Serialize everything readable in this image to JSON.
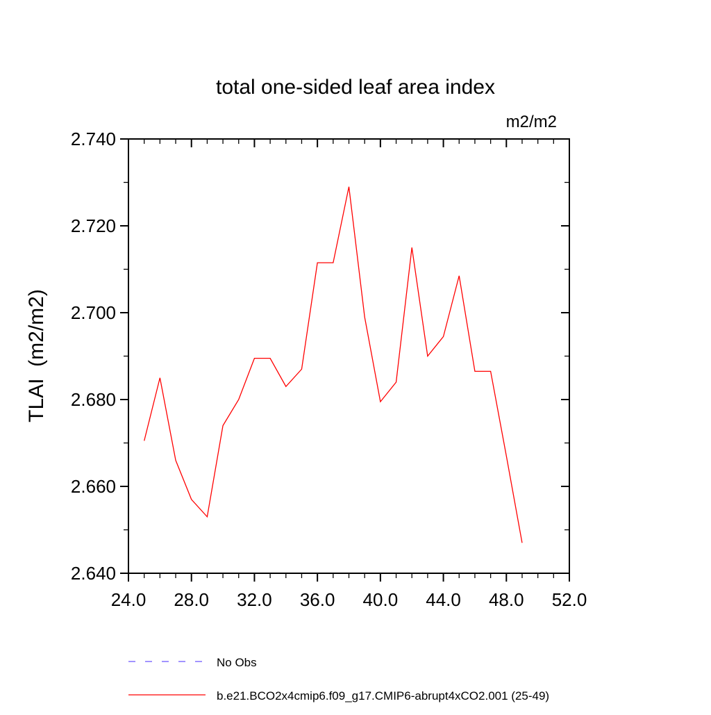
{
  "title": "total one-sided leaf area index",
  "unit_label": "m2/m2",
  "chart_data": {
    "type": "line",
    "title": "total one-sided leaf area index",
    "xlabel": "",
    "ylabel": "TLAI  (m2/m2)",
    "unit_label": "m2/m2",
    "xlim": [
      24.0,
      52.0
    ],
    "ylim": [
      2.64,
      2.74
    ],
    "grid": false,
    "legend_position": "bottom-left",
    "x_ticks": {
      "major": [
        24,
        28,
        32,
        36,
        40,
        44,
        48,
        52
      ],
      "labels": [
        "24.0",
        "28.0",
        "32.0",
        "36.0",
        "40.0",
        "44.0",
        "48.0",
        "52.0"
      ],
      "minor_step": 1
    },
    "y_ticks": {
      "major": [
        2.64,
        2.66,
        2.68,
        2.7,
        2.72,
        2.74
      ],
      "labels": [
        "2.640",
        "2.660",
        "2.680",
        "2.700",
        "2.720",
        "2.740"
      ],
      "minor_step": 0.01
    },
    "series": [
      {
        "name": "No Obs",
        "color": "#8470ff",
        "line_style": "dashed",
        "x": [],
        "values": []
      },
      {
        "name": "b.e21.BCO2x4cmip6.f09_g17.CMIP6-abrupt4xCO2.001 (25-49)",
        "color": "#ff0000",
        "line_style": "solid",
        "x": [
          25,
          26,
          27,
          28,
          29,
          30,
          31,
          32,
          33,
          34,
          35,
          36,
          37,
          38,
          39,
          40,
          41,
          42,
          43,
          44,
          45,
          46,
          47,
          48,
          49
        ],
        "values": [
          2.6705,
          2.685,
          2.666,
          2.657,
          2.653,
          2.674,
          2.68,
          2.6895,
          2.6895,
          2.683,
          2.687,
          2.7115,
          2.7115,
          2.729,
          2.699,
          2.6795,
          2.684,
          2.715,
          2.69,
          2.6945,
          2.7085,
          2.6865,
          2.6865,
          2.667,
          2.647
        ]
      }
    ]
  },
  "legend": {
    "items": [
      {
        "label": "No Obs",
        "color": "#8470ff",
        "line_style": "dashed"
      },
      {
        "label": "b.e21.BCO2x4cmip6.f09_g17.CMIP6-abrupt4xCO2.001 (25-49)",
        "color": "#ff0000",
        "line_style": "solid"
      }
    ]
  }
}
